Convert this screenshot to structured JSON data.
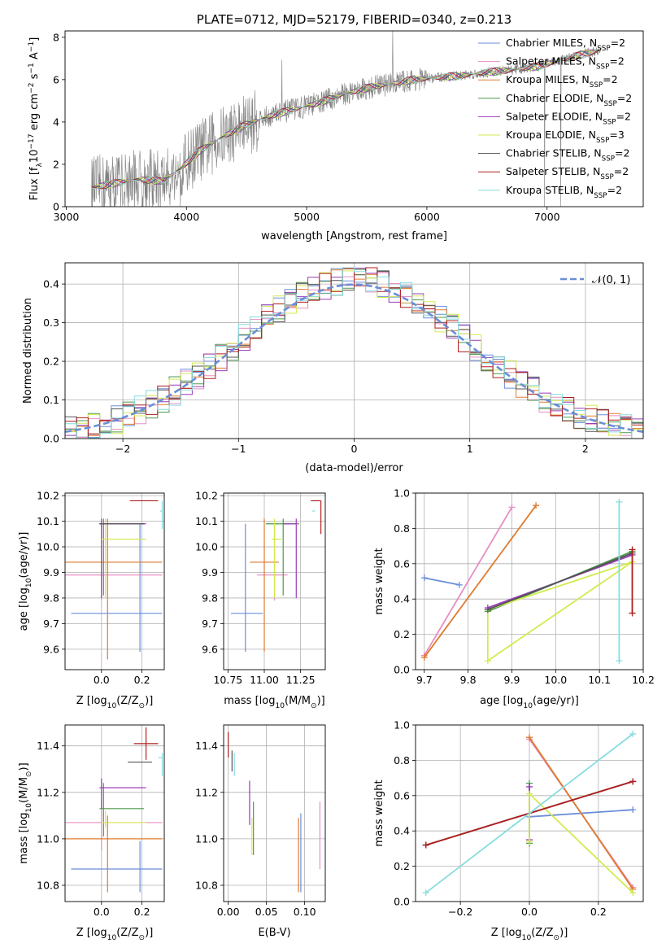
{
  "colors": {
    "Chabrier MILES": "#6a8ed8",
    "Salpeter MILES": "#e88ec4",
    "Kroupa MILES": "#e07a2e",
    "Chabrier ELODIE": "#4e9a4e",
    "Salpeter ELODIE": "#9a3cb8",
    "Kroupa ELODIE": "#d4ea50",
    "Chabrier STELIB": "#555555",
    "Salpeter STELIB": "#b01e1e",
    "Kroupa STELIB": "#86dce0",
    "normal": "#6a8ed8",
    "data": "#808080"
  },
  "chart_data": [
    {
      "id": "spectrum",
      "type": "line",
      "title": "PLATE=0712, MJD=52179, FIBERID=0340, z=0.213",
      "xlabel": "wavelength [Angstrom, rest frame]",
      "ylabel": "Flux [f",
      "ylabel_sub": "λ",
      "ylabel_mid": "10",
      "ylabel_sup1": "−17",
      "ylabel_end": " erg cm",
      "ylabel_sup2": "−2",
      "ylabel_end2": " s",
      "ylabel_sup3": "−1",
      "ylabel_end3": " A",
      "ylabel_sup4": "−1",
      "ylabel_close": "]",
      "xlim": [
        2990,
        7800
      ],
      "ylim": [
        0,
        8.3
      ],
      "xticks": [
        3000,
        4000,
        5000,
        6000,
        7000
      ],
      "yticks": [
        0,
        2,
        4,
        6,
        8
      ],
      "legend": [
        {
          "label": "Chabrier MILES, N",
          "sub": "SSP",
          "tail": "=2"
        },
        {
          "label": "Salpeter MILES, N",
          "sub": "SSP",
          "tail": "=2"
        },
        {
          "label": "Kroupa MILES, N",
          "sub": "SSP",
          "tail": "=2"
        },
        {
          "label": "Chabrier ELODIE, N",
          "sub": "SSP",
          "tail": "=2"
        },
        {
          "label": "Salpeter ELODIE, N",
          "sub": "SSP",
          "tail": "=2"
        },
        {
          "label": "Kroupa ELODIE, N",
          "sub": "SSP",
          "tail": "=3"
        },
        {
          "label": "Chabrier STELIB, N",
          "sub": "SSP",
          "tail": "=2"
        },
        {
          "label": "Salpeter STELIB, N",
          "sub": "SSP",
          "tail": "=2"
        },
        {
          "label": "Kroupa STELIB, N",
          "sub": "SSP",
          "tail": "=2"
        }
      ],
      "continuum": {
        "x": [
          3210,
          3400,
          3600,
          3800,
          3950,
          4100,
          4300,
          4500,
          4700,
          4900,
          5100,
          5300,
          5500,
          5700,
          5900,
          6100,
          6300,
          6500,
          6700,
          6900,
          7100,
          7300,
          7450
        ],
        "y": [
          0.9,
          1.1,
          1.3,
          1.2,
          1.8,
          2.6,
          3.3,
          3.9,
          4.3,
          4.6,
          4.9,
          5.3,
          5.6,
          5.8,
          6.0,
          6.1,
          6.2,
          6.35,
          6.45,
          6.6,
          6.9,
          7.2,
          7.4
        ]
      }
    },
    {
      "id": "residuals",
      "type": "histogram",
      "xlabel": "(data-model)/error",
      "ylabel": "Normed distribution",
      "xlim": [
        -2.5,
        2.5
      ],
      "ylim": [
        0,
        0.455
      ],
      "xticks": [
        -2,
        -1,
        0,
        1,
        2
      ],
      "yticks": [
        0,
        0.1,
        0.2,
        0.3,
        0.4
      ],
      "legend_label": "𝒩(0, 1)",
      "bin_width": 0.1,
      "bins_start": -2.5
    },
    {
      "id": "age-Z",
      "type": "errorbar",
      "xlabel": "Z [log",
      "xlabel_sub": "10",
      "xlabel_end": "(Z/Z",
      "xlabel_sub2": "⊙",
      "xlabel_close": ")]",
      "ylabel": "age  [log",
      "ylabel_sub": "10",
      "ylabel_end": "(age/yr)]",
      "xlim": [
        -0.18,
        0.31
      ],
      "ylim": [
        9.52,
        10.21
      ],
      "xticks": [
        0.0,
        0.2
      ],
      "yticks": [
        9.6,
        9.7,
        9.8,
        9.9,
        10.0,
        10.1,
        10.2
      ],
      "points": [
        {
          "model": "Chabrier MILES",
          "x": 0.19,
          "xerr": [
            0.34,
            0.11
          ],
          "y": 9.74,
          "yerr": [
            0.15,
            0.35
          ]
        },
        {
          "model": "Salpeter MILES",
          "x": 0.0,
          "xerr": [
            0.3,
            0.3
          ],
          "y": 9.89,
          "yerr": [
            0.1,
            0.2
          ]
        },
        {
          "model": "Kroupa MILES",
          "x": 0.03,
          "xerr": [
            0.33,
            0.27
          ],
          "y": 9.94,
          "yerr": [
            0.38,
            0.17
          ]
        },
        {
          "model": "Chabrier ELODIE",
          "x": 0.01,
          "xerr": [
            0.02,
            0.02
          ],
          "y": 10.09,
          "yerr": [
            0.28,
            0.02
          ]
        },
        {
          "model": "Salpeter ELODIE",
          "x": 0.0,
          "xerr": [
            0.01,
            0.22
          ],
          "y": 10.09,
          "yerr": [
            0.29,
            0.02
          ]
        },
        {
          "model": "Kroupa ELODIE",
          "x": 0.02,
          "xerr": [
            0.02,
            0.2
          ],
          "y": 10.03,
          "yerr": [
            0.23,
            0.08
          ]
        },
        {
          "model": "Chabrier STELIB",
          "x": 0.0,
          "xerr": [
            0.01,
            0.21
          ],
          "y": 10.09,
          "yerr": [
            0.0,
            0.0
          ]
        },
        {
          "model": "Salpeter STELIB",
          "x": 0.28,
          "xerr": [
            0.14,
            0.0
          ],
          "y": 10.18,
          "yerr": [
            0.0,
            0.0
          ]
        },
        {
          "model": "Kroupa STELIB",
          "x": 0.3,
          "xerr": [
            0.01,
            0.0
          ],
          "y": 10.14,
          "yerr": [
            0.07,
            0.04
          ]
        }
      ]
    },
    {
      "id": "age-mass",
      "type": "errorbar",
      "xlabel": "mass [log",
      "xlabel_sub": "10",
      "xlabel_end": "(M/M",
      "xlabel_sub2": "⊙",
      "xlabel_close": ")]",
      "xlim": [
        10.72,
        11.42
      ],
      "ylim": [
        9.52,
        10.21
      ],
      "xticks": [
        10.75,
        11.0,
        11.25
      ],
      "yticks": [
        9.6,
        9.7,
        9.8,
        9.9,
        10.0,
        10.1,
        10.2
      ],
      "points": [
        {
          "model": "Chabrier MILES",
          "x": 10.87,
          "xerr": [
            0.1,
            0.12
          ],
          "y": 9.74,
          "yerr": [
            0.15,
            0.35
          ]
        },
        {
          "model": "Salpeter MILES",
          "x": 11.07,
          "xerr": [
            0.12,
            0.09
          ],
          "y": 9.89,
          "yerr": [
            0.1,
            0.2
          ]
        },
        {
          "model": "Kroupa MILES",
          "x": 11.0,
          "xerr": [
            0.1,
            0.1
          ],
          "y": 9.94,
          "yerr": [
            0.35,
            0.17
          ]
        },
        {
          "model": "Chabrier ELODIE",
          "x": 11.13,
          "xerr": [
            0.12,
            0.11
          ],
          "y": 10.09,
          "yerr": [
            0.28,
            0.02
          ]
        },
        {
          "model": "Salpeter ELODIE",
          "x": 11.22,
          "xerr": [
            0.09,
            0.0
          ],
          "y": 10.09,
          "yerr": [
            0.29,
            0.02
          ]
        },
        {
          "model": "Kroupa ELODIE",
          "x": 11.07,
          "xerr": [
            0.02,
            0.05
          ],
          "y": 10.03,
          "yerr": [
            0.23,
            0.08
          ]
        },
        {
          "model": "Chabrier STELIB",
          "x": 11.33,
          "xerr": [
            0.0,
            0.0
          ],
          "y": 10.09,
          "yerr": [
            0.0,
            0.0
          ]
        },
        {
          "model": "Salpeter STELIB",
          "x": 11.39,
          "xerr": [
            0.07,
            0.0
          ],
          "y": 10.18,
          "yerr": [
            0.13,
            0.0
          ]
        },
        {
          "model": "Kroupa STELIB",
          "x": 11.35,
          "xerr": [
            0.02,
            0.0
          ],
          "y": 10.14,
          "yerr": [
            0.0,
            0.0
          ]
        }
      ]
    },
    {
      "id": "weight-age",
      "type": "line",
      "xlabel": "age  [log",
      "xlabel_sub": "10",
      "xlabel_end": "(age/yr)]",
      "ylabel": "mass weight",
      "xlim": [
        9.68,
        10.2
      ],
      "ylim": [
        0,
        1.0
      ],
      "xticks": [
        9.7,
        9.8,
        9.9,
        10.0,
        10.1,
        10.2
      ],
      "yticks": [
        0.0,
        0.2,
        0.4,
        0.6,
        0.8,
        1.0
      ],
      "series": [
        {
          "model": "Chabrier MILES",
          "x": [
            9.7,
            9.78
          ],
          "y": [
            0.52,
            0.48
          ]
        },
        {
          "model": "Salpeter MILES",
          "x": [
            9.7,
            9.9
          ],
          "y": [
            0.08,
            0.92
          ]
        },
        {
          "model": "Kroupa MILES",
          "x": [
            9.7,
            9.955
          ],
          "y": [
            0.07,
            0.93
          ]
        },
        {
          "model": "Chabrier ELODIE",
          "x": [
            9.845,
            10.175
          ],
          "y": [
            0.33,
            0.67
          ]
        },
        {
          "model": "Salpeter ELODIE",
          "x": [
            9.845,
            10.175
          ],
          "y": [
            0.35,
            0.65
          ]
        },
        {
          "model": "Kroupa ELODIE",
          "x": [
            9.845,
            9.845,
            10.175,
            9.845
          ],
          "y": [
            0.34,
            0.05,
            0.61,
            0.34
          ]
        },
        {
          "model": "Chabrier STELIB",
          "x": [
            9.845,
            10.175
          ],
          "y": [
            0.34,
            0.66
          ]
        },
        {
          "model": "Salpeter STELIB",
          "x": [
            10.175,
            10.175
          ],
          "y": [
            0.32,
            0.68
          ]
        },
        {
          "model": "Kroupa STELIB",
          "x": [
            10.145,
            10.145
          ],
          "y": [
            0.05,
            0.95
          ]
        }
      ]
    },
    {
      "id": "mass-Z",
      "type": "errorbar",
      "xlabel": "Z [log",
      "xlabel_sub": "10",
      "xlabel_end": "(Z/Z",
      "xlabel_sub2": "⊙",
      "xlabel_close": ")]",
      "ylabel": "mass [log",
      "ylabel_sub": "10",
      "ylabel_end": "(M/M",
      "ylabel_sub2": "⊙",
      "ylabel_close": ")]",
      "xlim": [
        -0.18,
        0.31
      ],
      "ylim": [
        10.73,
        11.49
      ],
      "xticks": [
        0.0,
        0.2
      ],
      "yticks": [
        10.8,
        11.0,
        11.2,
        11.4
      ],
      "points": [
        {
          "model": "Chabrier MILES",
          "x": 0.19,
          "xerr": [
            0.34,
            0.11
          ],
          "y": 10.87,
          "yerr": [
            0.1,
            0.12
          ]
        },
        {
          "model": "Salpeter MILES",
          "x": 0.0,
          "xerr": [
            0.3,
            0.3
          ],
          "y": 11.07,
          "yerr": [
            0.12,
            0.09
          ]
        },
        {
          "model": "Kroupa MILES",
          "x": 0.03,
          "xerr": [
            0.33,
            0.27
          ],
          "y": 11.0,
          "yerr": [
            0.23,
            0.1
          ]
        },
        {
          "model": "Chabrier ELODIE",
          "x": 0.01,
          "xerr": [
            0.02,
            0.2
          ],
          "y": 11.13,
          "yerr": [
            0.12,
            0.11
          ]
        },
        {
          "model": "Salpeter ELODIE",
          "x": 0.0,
          "xerr": [
            0.01,
            0.22
          ],
          "y": 11.22,
          "yerr": [
            0.09,
            0.04
          ]
        },
        {
          "model": "Kroupa ELODIE",
          "x": 0.02,
          "xerr": [
            0.02,
            0.2
          ],
          "y": 11.07,
          "yerr": [
            0.02,
            0.05
          ]
        },
        {
          "model": "Chabrier STELIB",
          "x": 0.2,
          "xerr": [
            0.07,
            0.05
          ],
          "y": 11.33,
          "yerr": [
            0.0,
            0.0
          ]
        },
        {
          "model": "Salpeter STELIB",
          "x": 0.22,
          "xerr": [
            0.06,
            0.06
          ],
          "y": 11.41,
          "yerr": [
            0.07,
            0.07
          ]
        },
        {
          "model": "Kroupa STELIB",
          "x": 0.3,
          "xerr": [
            0.02,
            0.0
          ],
          "y": 11.35,
          "yerr": [
            0.08,
            0.02
          ]
        }
      ]
    },
    {
      "id": "mass-EBV",
      "type": "errorbar",
      "xlabel": "E(B-V)",
      "xlim": [
        -0.006,
        0.127
      ],
      "ylim": [
        10.73,
        11.49
      ],
      "xticks": [
        0.0,
        0.05,
        0.1
      ],
      "yticks": [
        10.8,
        11.0,
        11.2,
        11.4
      ],
      "points": [
        {
          "model": "Chabrier MILES",
          "x": 0.095,
          "xerr": [
            0.0,
            0.0
          ],
          "y": 10.87,
          "yerr": [
            0.1,
            0.24
          ]
        },
        {
          "model": "Salpeter MILES",
          "x": 0.12,
          "xerr": [
            0.0,
            0.0
          ],
          "y": 11.07,
          "yerr": [
            0.2,
            0.09
          ]
        },
        {
          "model": "Kroupa MILES",
          "x": 0.092,
          "xerr": [
            0.0,
            0.0
          ],
          "y": 11.0,
          "yerr": [
            0.23,
            0.09
          ]
        },
        {
          "model": "Chabrier ELODIE",
          "x": 0.033,
          "xerr": [
            0.0,
            0.0
          ],
          "y": 11.13,
          "yerr": [
            0.2,
            0.03
          ]
        },
        {
          "model": "Salpeter ELODIE",
          "x": 0.028,
          "xerr": [
            0.0,
            0.0
          ],
          "y": 11.22,
          "yerr": [
            0.16,
            0.03
          ]
        },
        {
          "model": "Kroupa ELODIE",
          "x": 0.031,
          "xerr": [
            0.0,
            0.0
          ],
          "y": 11.07,
          "yerr": [
            0.14,
            0.02
          ]
        },
        {
          "model": "Chabrier STELIB",
          "x": 0.005,
          "xerr": [
            0.0,
            0.0
          ],
          "y": 11.33,
          "yerr": [
            0.04,
            0.05
          ]
        },
        {
          "model": "Salpeter STELIB",
          "x": 0.0,
          "xerr": [
            0.0,
            0.0
          ],
          "y": 11.41,
          "yerr": [
            0.06,
            0.05
          ]
        },
        {
          "model": "Kroupa STELIB",
          "x": 0.008,
          "xerr": [
            0.0,
            0.0
          ],
          "y": 11.35,
          "yerr": [
            0.08,
            0.02
          ]
        }
      ]
    },
    {
      "id": "weight-Z",
      "type": "line",
      "xlabel": "Z [log",
      "xlabel_sub": "10",
      "xlabel_end": "(Z/Z",
      "xlabel_sub2": "⊙",
      "xlabel_close": ")]",
      "ylabel": "mass weight",
      "xlim": [
        -0.33,
        0.33
      ],
      "ylim": [
        0,
        1.0
      ],
      "xticks": [
        -0.2,
        0.0,
        0.2
      ],
      "yticks": [
        0.0,
        0.2,
        0.4,
        0.6,
        0.8,
        1.0
      ],
      "series": [
        {
          "model": "Chabrier MILES",
          "x": [
            0.0,
            0.3
          ],
          "y": [
            0.48,
            0.52
          ]
        },
        {
          "model": "Salpeter MILES",
          "x": [
            0.0,
            0.3
          ],
          "y": [
            0.92,
            0.08
          ]
        },
        {
          "model": "Kroupa MILES",
          "x": [
            0.0,
            0.3
          ],
          "y": [
            0.93,
            0.07
          ]
        },
        {
          "model": "Chabrier ELODIE",
          "x": [
            0.0,
            0.0
          ],
          "y": [
            0.33,
            0.67
          ]
        },
        {
          "model": "Salpeter ELODIE",
          "x": [
            0.0,
            0.0
          ],
          "y": [
            0.35,
            0.65
          ]
        },
        {
          "model": "Kroupa ELODIE",
          "x": [
            0.0,
            0.0,
            0.3
          ],
          "y": [
            0.34,
            0.61,
            0.05
          ]
        },
        {
          "model": "Chabrier STELIB",
          "x": [
            -0.3,
            0.3
          ],
          "y": [
            0.32,
            0.68
          ]
        },
        {
          "model": "Salpeter STELIB",
          "x": [
            -0.3,
            0.3
          ],
          "y": [
            0.32,
            0.68
          ]
        },
        {
          "model": "Kroupa STELIB",
          "x": [
            -0.3,
            0.3
          ],
          "y": [
            0.05,
            0.95
          ]
        }
      ]
    }
  ]
}
